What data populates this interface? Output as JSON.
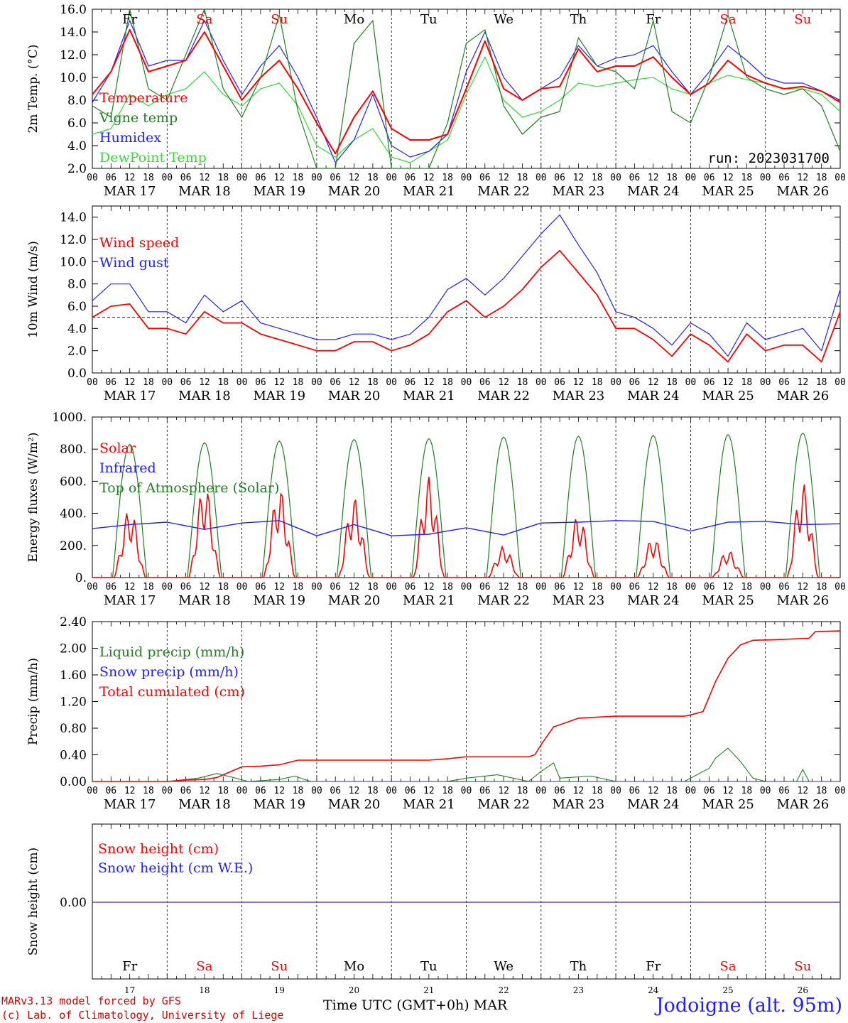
{
  "footer": {
    "model_line": "MARv3.13 model forced by GFS",
    "lab_line": "(c) Lab. of Climatology, University of Liege",
    "axis_title": "Time UTC (GMT+0h)",
    "month": "MAR",
    "station": "Jodoigne (alt. 95m)"
  },
  "run_label": "run: 2023031700",
  "hour_ticks": [
    "00",
    "06",
    "12",
    "18"
  ],
  "end_tick": "00",
  "day_labels": [
    "MAR 17",
    "MAR 18",
    "MAR 19",
    "MAR 20",
    "MAR 21",
    "MAR 22",
    "MAR 23",
    "MAR 24",
    "MAR 25",
    "MAR 26"
  ],
  "weekdays": [
    "Fr",
    "Sa",
    "Su",
    "Mo",
    "Tu",
    "We",
    "Th",
    "Fr",
    "Sa",
    "Su"
  ],
  "weekend_index": [
    1,
    2,
    8,
    9
  ],
  "day_numbers": [
    "17",
    "18",
    "19",
    "20",
    "21",
    "22",
    "23",
    "24",
    "25",
    "26"
  ],
  "colors": {
    "red": "#ff0000",
    "green": "#208020",
    "blue": "#2020ff",
    "lightgreen": "#33dd33",
    "weekend": "#ff0000",
    "purple": "#8040a0"
  },
  "chart_data": [
    {
      "type": "line",
      "ylabel": "2m Temp. (°C)",
      "ylim": [
        2.0,
        16.0
      ],
      "yticks": [
        "2.0",
        "4.0",
        "6.0",
        "8.0",
        "10.0",
        "12.0",
        "14.0",
        "16.0"
      ],
      "x_unit": "hours since MAR 17 00 UTC",
      "series": [
        {
          "name": "Temperature",
          "color": "red",
          "x": [
            0,
            6,
            12,
            18,
            24,
            30,
            36,
            42,
            48,
            54,
            60,
            66,
            72,
            78,
            84,
            90,
            96,
            102,
            108,
            114,
            120,
            126,
            132,
            138,
            144,
            150,
            156,
            162,
            168,
            174,
            180,
            186,
            192,
            198,
            204,
            210,
            216,
            222,
            228,
            234,
            240
          ],
          "y": [
            8.5,
            10.5,
            14.2,
            10.5,
            11.0,
            11.5,
            14.0,
            11.0,
            8.0,
            10.0,
            11.5,
            9.0,
            6.0,
            3.3,
            6.5,
            8.8,
            5.5,
            4.5,
            4.5,
            5.0,
            9.0,
            13.2,
            9.0,
            8.0,
            9.0,
            9.2,
            12.5,
            10.5,
            11.0,
            11.0,
            11.8,
            10.0,
            8.5,
            9.5,
            11.5,
            10.2,
            9.5,
            9.0,
            9.2,
            8.8,
            7.8
          ]
        },
        {
          "name": "Vigne temp",
          "color": "green",
          "x": [
            0,
            6,
            12,
            18,
            24,
            30,
            36,
            42,
            48,
            54,
            60,
            66,
            72,
            78,
            84,
            90,
            96,
            102,
            108,
            114,
            120,
            126,
            132,
            138,
            144,
            150,
            156,
            162,
            168,
            174,
            180,
            186,
            192,
            198,
            204,
            210,
            216,
            222,
            228,
            234,
            240
          ],
          "y": [
            7.5,
            6.5,
            16.0,
            9.0,
            8.0,
            12.0,
            16.0,
            9.0,
            6.5,
            10.0,
            15.5,
            7.0,
            2.0,
            1.5,
            13.0,
            15.0,
            1.0,
            1.5,
            2.0,
            6.0,
            13.0,
            14.2,
            7.5,
            5.0,
            6.5,
            7.0,
            13.5,
            11.0,
            10.5,
            9.0,
            15.0,
            7.0,
            6.0,
            10.0,
            15.5,
            10.0,
            9.0,
            8.5,
            9.0,
            7.5,
            3.5
          ]
        },
        {
          "name": "Humidex",
          "color": "blue",
          "x": [
            0,
            6,
            12,
            18,
            24,
            30,
            36,
            42,
            48,
            54,
            60,
            66,
            72,
            78,
            84,
            90,
            96,
            102,
            108,
            114,
            120,
            126,
            132,
            138,
            144,
            150,
            156,
            162,
            168,
            174,
            180,
            186,
            192,
            198,
            204,
            210,
            216,
            222,
            228,
            234,
            240
          ],
          "y": [
            7.8,
            10.5,
            15.0,
            11.0,
            11.5,
            11.5,
            15.0,
            11.5,
            8.5,
            11.0,
            12.8,
            10.0,
            6.5,
            2.5,
            4.5,
            8.5,
            4.0,
            3.0,
            3.5,
            5.0,
            10.5,
            14.0,
            10.0,
            8.0,
            9.0,
            10.0,
            12.8,
            11.0,
            11.7,
            12.0,
            12.8,
            10.5,
            8.5,
            10.5,
            12.8,
            11.5,
            10.0,
            9.5,
            9.5,
            8.8,
            8.0
          ]
        },
        {
          "name": "DewPoint Temp",
          "color": "lightgreen",
          "x": [
            0,
            6,
            12,
            18,
            24,
            30,
            36,
            42,
            48,
            54,
            60,
            66,
            72,
            78,
            84,
            90,
            96,
            102,
            108,
            114,
            120,
            126,
            132,
            138,
            144,
            150,
            156,
            162,
            168,
            174,
            180,
            186,
            192,
            198,
            204,
            210,
            216,
            222,
            228,
            234,
            240
          ],
          "y": [
            5.0,
            5.5,
            8.5,
            7.5,
            8.5,
            9.0,
            10.5,
            8.5,
            7.5,
            9.0,
            9.5,
            7.5,
            4.0,
            3.0,
            4.5,
            5.5,
            3.0,
            2.5,
            3.5,
            4.5,
            8.5,
            11.8,
            8.0,
            6.5,
            7.0,
            8.0,
            9.5,
            9.2,
            9.5,
            9.8,
            10.0,
            9.0,
            8.5,
            9.5,
            10.2,
            9.8,
            9.5,
            9.0,
            9.0,
            8.5,
            7.0
          ]
        }
      ]
    },
    {
      "type": "line",
      "ylabel": "10m Wind (m/s)",
      "ylim": [
        0.0,
        15.0
      ],
      "yticks": [
        "0.0",
        "2.0",
        "4.0",
        "6.0",
        "8.0",
        "10.0",
        "12.0",
        "14.0"
      ],
      "reference_line": 5.0,
      "series": [
        {
          "name": "Wind speed",
          "color": "red",
          "x": [
            0,
            6,
            12,
            18,
            24,
            30,
            36,
            42,
            48,
            54,
            60,
            66,
            72,
            78,
            84,
            90,
            96,
            102,
            108,
            114,
            120,
            126,
            132,
            138,
            144,
            150,
            156,
            162,
            168,
            174,
            180,
            186,
            192,
            198,
            204,
            210,
            216,
            222,
            228,
            234,
            240
          ],
          "y": [
            5.0,
            6.0,
            6.2,
            4.0,
            4.0,
            3.5,
            5.5,
            4.5,
            4.5,
            3.5,
            3.0,
            2.5,
            2.0,
            2.0,
            2.8,
            2.8,
            2.0,
            2.5,
            3.5,
            5.5,
            6.5,
            5.0,
            6.0,
            7.5,
            9.5,
            11.0,
            9.0,
            7.0,
            4.0,
            4.0,
            3.0,
            1.5,
            3.5,
            2.5,
            1.0,
            3.5,
            2.0,
            2.5,
            2.5,
            1.0,
            5.5
          ]
        },
        {
          "name": "Wind gust",
          "color": "blue",
          "x": [
            0,
            6,
            12,
            18,
            24,
            30,
            36,
            42,
            48,
            54,
            60,
            66,
            72,
            78,
            84,
            90,
            96,
            102,
            108,
            114,
            120,
            126,
            132,
            138,
            144,
            150,
            156,
            162,
            168,
            174,
            180,
            186,
            192,
            198,
            204,
            210,
            216,
            222,
            228,
            234,
            240
          ],
          "y": [
            6.5,
            8.0,
            8.0,
            5.5,
            5.5,
            4.5,
            7.0,
            5.5,
            6.5,
            4.5,
            4.0,
            3.5,
            3.0,
            3.0,
            3.5,
            3.5,
            3.0,
            3.5,
            5.0,
            7.5,
            8.5,
            7.0,
            8.5,
            10.5,
            12.5,
            14.2,
            11.5,
            9.0,
            5.5,
            5.0,
            4.0,
            2.5,
            4.5,
            3.5,
            1.5,
            4.5,
            3.0,
            3.5,
            4.0,
            2.0,
            7.5
          ]
        }
      ]
    },
    {
      "type": "line",
      "ylabel": "Energy fluxes (W/m²)",
      "ylim": [
        0,
        1000
      ],
      "yticks": [
        "0.",
        "200.",
        "400.",
        "600.",
        "800.",
        "1000."
      ],
      "series": [
        {
          "name": "Solar",
          "color": "red",
          "daily_peak": [
            430,
            580,
            560,
            500,
            630,
            195,
            390,
            250,
            170,
            590
          ]
        },
        {
          "name": "Infrared",
          "color": "blue",
          "x": [
            0,
            12,
            24,
            36,
            48,
            60,
            72,
            84,
            96,
            108,
            120,
            132,
            144,
            156,
            168,
            180,
            192,
            204,
            216,
            228,
            240
          ],
          "y": [
            305,
            330,
            345,
            300,
            340,
            355,
            260,
            330,
            260,
            270,
            310,
            265,
            340,
            345,
            355,
            350,
            290,
            345,
            350,
            330,
            335
          ]
        },
        {
          "name": "Top of Atmosphere (Solar)",
          "color": "green",
          "daily_peak": [
            830,
            840,
            850,
            860,
            865,
            875,
            880,
            885,
            890,
            900
          ]
        }
      ]
    },
    {
      "type": "line",
      "ylabel": "Precip (mm/h)",
      "ylim": [
        0.0,
        2.4
      ],
      "yticks": [
        "0.00",
        "0.40",
        "0.80",
        "1.20",
        "1.60",
        "2.00",
        "2.40"
      ],
      "series": [
        {
          "name": "Liquid precip (mm/h)",
          "color": "green",
          "x": [
            24,
            34,
            40,
            46,
            50,
            60,
            65,
            70,
            114,
            120,
            130,
            140,
            144,
            148,
            150,
            160,
            168,
            190,
            198,
            200,
            204,
            208,
            212,
            216,
            226,
            228,
            230
          ],
          "y": [
            0,
            0.05,
            0.12,
            0.05,
            0,
            0.03,
            0.08,
            0,
            0,
            0.05,
            0.1,
            0,
            0.15,
            0.28,
            0.05,
            0.08,
            0,
            0,
            0.2,
            0.35,
            0.5,
            0.3,
            0.05,
            0,
            0,
            0.18,
            0
          ]
        },
        {
          "name": "Snow precip (mm/h)",
          "color": "blue",
          "x": [
            0,
            240
          ],
          "y": [
            0,
            0
          ]
        },
        {
          "name": "Total cumulated (cm)",
          "color": "red",
          "x": [
            0,
            24,
            30,
            36,
            40,
            44,
            48,
            54,
            60,
            66,
            72,
            90,
            108,
            114,
            120,
            130,
            140,
            142,
            144,
            148,
            150,
            156,
            168,
            180,
            190,
            192,
            196,
            200,
            204,
            208,
            212,
            220,
            230,
            232,
            240
          ],
          "y": [
            0,
            0,
            0.02,
            0.03,
            0.06,
            0.14,
            0.22,
            0.23,
            0.25,
            0.32,
            0.32,
            0.32,
            0.32,
            0.34,
            0.37,
            0.37,
            0.37,
            0.4,
            0.55,
            0.82,
            0.85,
            0.95,
            0.98,
            0.98,
            0.98,
            1.0,
            1.05,
            1.5,
            1.85,
            2.05,
            2.12,
            2.13,
            2.15,
            2.25,
            2.26
          ]
        }
      ]
    },
    {
      "type": "line",
      "ylabel": "Snow height (cm)",
      "yticks": [
        "0.00"
      ],
      "series": [
        {
          "name": "Snow height (cm)",
          "color": "red",
          "x": [
            0,
            240
          ],
          "y": [
            0,
            0
          ]
        },
        {
          "name": "Snow height (cm W.E.)",
          "color": "blue",
          "x": [
            0,
            240
          ],
          "y": [
            0,
            0
          ]
        }
      ]
    }
  ]
}
